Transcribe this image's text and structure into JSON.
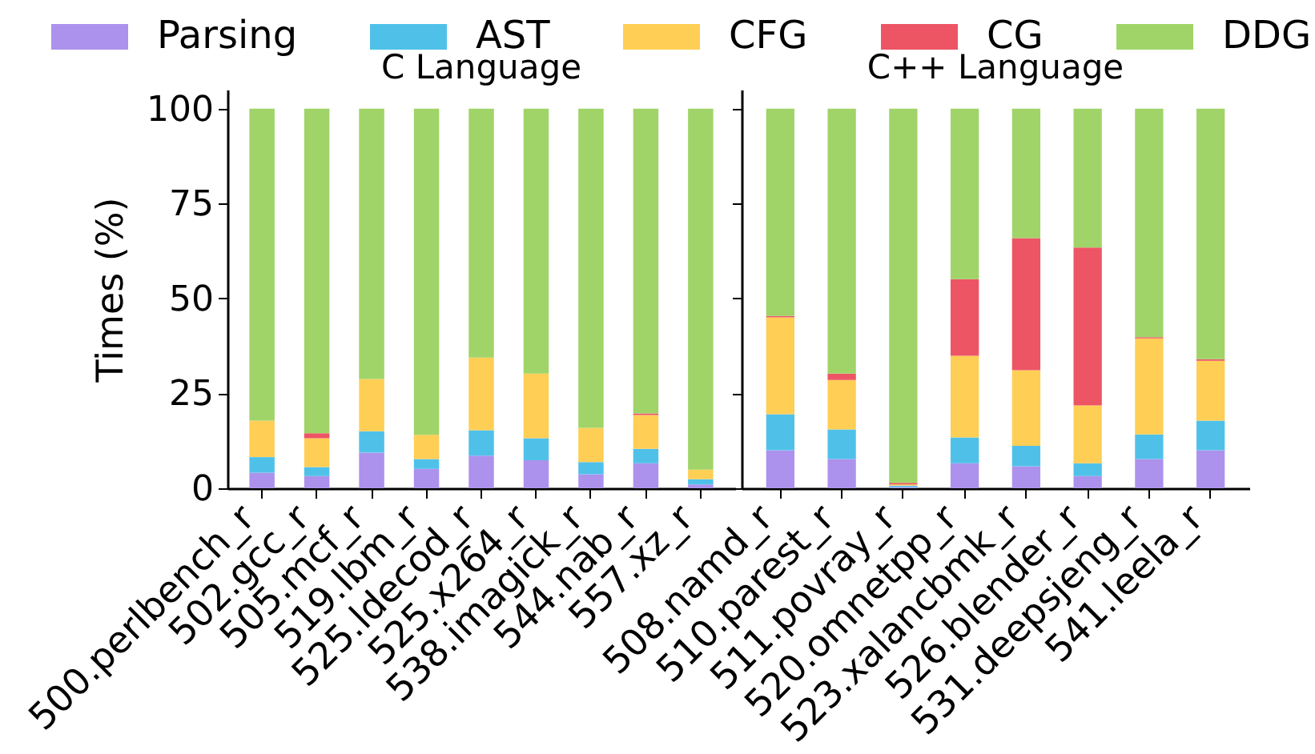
{
  "chart_data": [
    {
      "type": "bar",
      "stacked": true,
      "title": "C Language",
      "ylabel": "Times (%)",
      "legend": "top",
      "grid": false,
      "categories": [
        "500.perlbench_r",
        "502.gcc_r",
        "505.mcf_r",
        "519.lbm_r",
        "525.ldecod_r",
        "525.x264_r",
        "538.imagick_r",
        "544.nab_r",
        "557.xz_r"
      ],
      "ylim": [
        0,
        105
      ],
      "yticks": [
        0,
        25,
        50,
        75,
        100
      ],
      "series": [
        {
          "name": "Parsing",
          "color": "#ac92ec",
          "values": [
            4.1,
            3.2,
            9.4,
            5.1,
            8.6,
            7.4,
            3.7,
            6.6,
            1.0
          ]
        },
        {
          "name": "AST",
          "color": "#4fc1e9",
          "values": [
            4.1,
            2.4,
            5.6,
            2.6,
            6.7,
            5.8,
            3.2,
            3.8,
            1.4
          ]
        },
        {
          "name": "CFG",
          "color": "#ffce54",
          "values": [
            9.6,
            7.6,
            13.8,
            6.4,
            19.1,
            17.0,
            9.0,
            8.9,
            2.5
          ]
        },
        {
          "name": "CG",
          "color": "#ed5565",
          "values": [
            null,
            1.3,
            null,
            null,
            null,
            null,
            null,
            0.4,
            null
          ]
        },
        {
          "name": "DDG",
          "color": "#a0d468",
          "values": [
            82.2,
            85.5,
            71.2,
            85.9,
            65.6,
            69.8,
            84.1,
            80.3,
            95.1
          ]
        }
      ]
    },
    {
      "type": "bar",
      "stacked": true,
      "title": "C++ Language",
      "legend": "top",
      "grid": false,
      "tick_labels": "x",
      "categories": [
        "508.namd_r",
        "510.parest_r",
        "511.povray_r",
        "520.omnetpp_r",
        "523.xalancbmk_r",
        "526.blender_r",
        "531.deepsjeng_r",
        "541.leela_r"
      ],
      "ylim": [
        0,
        105
      ],
      "yticks": [
        0,
        25,
        50,
        75,
        100
      ],
      "series": [
        {
          "name": "Parsing",
          "color": "#ac92ec",
          "values": [
            10.0,
            7.7,
            0.3,
            6.6,
            5.8,
            3.2,
            7.7,
            10.0
          ]
        },
        {
          "name": "AST",
          "color": "#4fc1e9",
          "values": [
            9.5,
            7.8,
            0.4,
            6.8,
            5.4,
            3.4,
            6.5,
            7.8
          ]
        },
        {
          "name": "CFG",
          "color": "#ffce54",
          "values": [
            25.5,
            13.0,
            0.3,
            21.5,
            19.9,
            15.2,
            25.3,
            15.8
          ]
        },
        {
          "name": "CG",
          "color": "#ed5565",
          "values": [
            0.4,
            1.7,
            0.4,
            20.2,
            34.8,
            41.6,
            0.3,
            0.4
          ]
        },
        {
          "name": "DDG",
          "color": "#a0d468",
          "values": [
            54.6,
            69.8,
            98.6,
            44.9,
            34.1,
            36.6,
            60.2,
            66.0
          ]
        }
      ]
    }
  ]
}
